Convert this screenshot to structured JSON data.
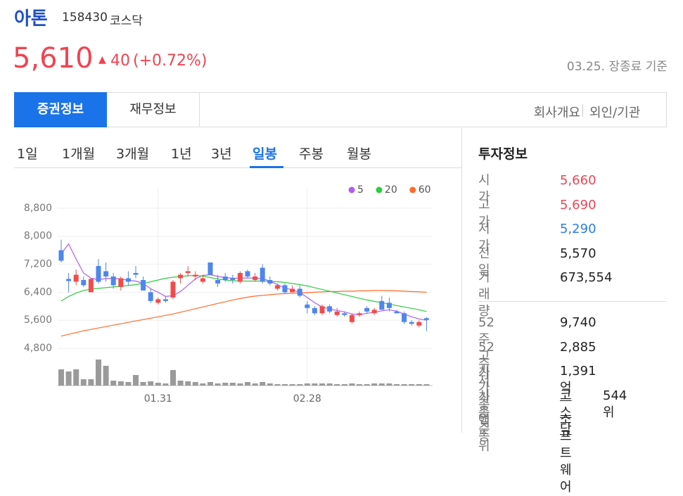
{
  "header": {
    "name": "아톤",
    "code": "158430",
    "market": "코스닥",
    "price": "5,610",
    "change": "40",
    "change_rate": "(+0.72%)",
    "as_of": "03.25. 장종료 기준"
  },
  "tabs": {
    "items": [
      "증권정보",
      "재무정보"
    ],
    "active": 0,
    "links": [
      "회사개요",
      "외인/기관"
    ]
  },
  "periods": {
    "items": [
      "1일",
      "1개월",
      "3개월",
      "1년",
      "3년",
      "일봉",
      "주봉",
      "월봉"
    ],
    "active": 5
  },
  "info": {
    "title": "투자정보",
    "rows": [
      {
        "label": "시가",
        "value": "5,660",
        "color": "#f04452"
      },
      {
        "label": "고가",
        "value": "5,690",
        "color": "#f04452"
      },
      {
        "label": "저가",
        "value": "5,290",
        "color": "#2b7de9"
      },
      {
        "label": "전일",
        "value": "5,570"
      },
      {
        "label": "거래량",
        "value": "673,554"
      }
    ],
    "rows2": [
      {
        "label": "52주 고가",
        "value": "9,740"
      },
      {
        "label": "52주 저가",
        "value": "2,885"
      },
      {
        "label": "시가총액",
        "value": "1,391억"
      },
      {
        "label": "시총순위",
        "link": "코스닥",
        "value": "544위"
      },
      {
        "label": "업종",
        "link": "소프트웨어"
      }
    ]
  },
  "chart_data": {
    "type": "candlestick",
    "up_color": "#f04c4c",
    "down_color": "#4e86ec",
    "volume_color": "#9a9a9a",
    "ylim": [
      4400,
      9300
    ],
    "yticks": [
      {
        "value": 4800,
        "label": "4,800"
      },
      {
        "value": 5600,
        "label": "5,600"
      },
      {
        "value": 6400,
        "label": "6,400"
      },
      {
        "value": 7200,
        "label": "7,200"
      },
      {
        "value": 8000,
        "label": "8,000"
      },
      {
        "value": 8800,
        "label": "8,800"
      }
    ],
    "grid": true,
    "categories": [
      null,
      null,
      null,
      null,
      null,
      null,
      null,
      null,
      null,
      null,
      null,
      null,
      null,
      "01.31",
      null,
      null,
      null,
      null,
      null,
      null,
      null,
      null,
      null,
      null,
      null,
      null,
      null,
      null,
      null,
      null,
      null,
      null,
      null,
      "02.28",
      null,
      null,
      null,
      null,
      null,
      null,
      null,
      null,
      null,
      null,
      null,
      null,
      null,
      null,
      null,
      null
    ],
    "candles": [
      {
        "open": 7600,
        "high": 7900,
        "low": 7250,
        "close": 7300
      },
      {
        "open": 6780,
        "high": 6950,
        "low": 6400,
        "close": 6720
      },
      {
        "open": 6700,
        "high": 7050,
        "low": 6600,
        "close": 6900
      },
      {
        "open": 6750,
        "high": 6850,
        "low": 6550,
        "close": 6600
      },
      {
        "open": 6400,
        "high": 6800,
        "low": 6400,
        "close": 6780
      },
      {
        "open": 7150,
        "high": 7350,
        "low": 6650,
        "close": 6700
      },
      {
        "open": 7000,
        "high": 7250,
        "low": 6700,
        "close": 6850
      },
      {
        "open": 6850,
        "high": 6950,
        "low": 6500,
        "close": 6600
      },
      {
        "open": 6550,
        "high": 6850,
        "low": 6450,
        "close": 6800
      },
      {
        "open": 6800,
        "high": 7000,
        "low": 6600,
        "close": 6700
      },
      {
        "open": 6950,
        "high": 7150,
        "low": 6800,
        "close": 6900
      },
      {
        "open": 6750,
        "high": 6850,
        "low": 6450,
        "close": 6450
      },
      {
        "open": 6400,
        "high": 6500,
        "low": 6100,
        "close": 6150
      },
      {
        "open": 6100,
        "high": 6250,
        "low": 6050,
        "close": 6200
      },
      {
        "open": 6200,
        "high": 6300,
        "low": 6100,
        "close": 6150
      },
      {
        "open": 6250,
        "high": 6750,
        "low": 6200,
        "close": 6700
      },
      {
        "open": 6800,
        "high": 6950,
        "low": 6650,
        "close": 6900
      },
      {
        "open": 6950,
        "high": 7150,
        "low": 6850,
        "close": 7000
      },
      {
        "open": 6850,
        "high": 7000,
        "low": 6750,
        "close": 6900
      },
      {
        "open": 6700,
        "high": 6900,
        "low": 6650,
        "close": 6800
      },
      {
        "open": 7250,
        "high": 7250,
        "low": 6900,
        "close": 6900
      },
      {
        "open": 6750,
        "high": 6900,
        "low": 6550,
        "close": 6650
      },
      {
        "open": 6850,
        "high": 6950,
        "low": 6700,
        "close": 6750
      },
      {
        "open": 6800,
        "high": 6900,
        "low": 6650,
        "close": 6750
      },
      {
        "open": 6700,
        "high": 7000,
        "low": 6650,
        "close": 6950
      },
      {
        "open": 7000,
        "high": 7050,
        "low": 6800,
        "close": 6850
      },
      {
        "open": 6750,
        "high": 6950,
        "low": 6700,
        "close": 6850
      },
      {
        "open": 7100,
        "high": 7200,
        "low": 6650,
        "close": 6700
      },
      {
        "open": 6750,
        "high": 6850,
        "low": 6600,
        "close": 6650
      },
      {
        "open": 6500,
        "high": 6650,
        "low": 6450,
        "close": 6600
      },
      {
        "open": 6600,
        "high": 6650,
        "low": 6350,
        "close": 6400
      },
      {
        "open": 6400,
        "high": 6600,
        "low": 6400,
        "close": 6500
      },
      {
        "open": 6500,
        "high": 6600,
        "low": 6250,
        "close": 6300
      },
      {
        "open": 6050,
        "high": 6150,
        "low": 5800,
        "close": 5950
      },
      {
        "open": 5950,
        "high": 6000,
        "low": 5750,
        "close": 5800
      },
      {
        "open": 5800,
        "high": 6050,
        "low": 5750,
        "close": 6000
      },
      {
        "open": 6000,
        "high": 6050,
        "low": 5800,
        "close": 5850
      },
      {
        "open": 5750,
        "high": 5950,
        "low": 5700,
        "close": 5850
      },
      {
        "open": 5800,
        "high": 5850,
        "low": 5700,
        "close": 5750
      },
      {
        "open": 5550,
        "high": 5800,
        "low": 5500,
        "close": 5750
      },
      {
        "open": 5750,
        "high": 5850,
        "low": 5700,
        "close": 5800
      },
      {
        "open": 5950,
        "high": 6000,
        "low": 5800,
        "close": 5850
      },
      {
        "open": 5800,
        "high": 5950,
        "low": 5750,
        "close": 5900
      },
      {
        "open": 6150,
        "high": 6300,
        "low": 5900,
        "close": 5900
      },
      {
        "open": 6100,
        "high": 6250,
        "low": 5850,
        "close": 5950
      },
      {
        "open": 5850,
        "high": 5900,
        "low": 5800,
        "close": 5800
      },
      {
        "open": 5800,
        "high": 5850,
        "low": 5500,
        "close": 5550
      },
      {
        "open": 5550,
        "high": 5600,
        "low": 5450,
        "close": 5500
      },
      {
        "open": 5450,
        "high": 5600,
        "low": 5400,
        "close": 5550
      },
      {
        "open": 5660,
        "high": 5690,
        "low": 5290,
        "close": 5610
      }
    ],
    "volume": [
      8050000,
      7000000,
      8050000,
      3150000,
      3150000,
      12950000,
      9800000,
      2450000,
      2100000,
      1750000,
      5250000,
      1750000,
      2100000,
      1400000,
      1050000,
      7700000,
      2450000,
      2100000,
      1750000,
      1050000,
      1750000,
      1050000,
      1400000,
      1400000,
      1050000,
      1750000,
      1050000,
      1750000,
      1050000,
      700000,
      700000,
      700000,
      700000,
      1050000,
      1050000,
      1050000,
      1050000,
      700000,
      700000,
      1050000,
      700000,
      700000,
      1050000,
      1050000,
      1050000,
      700000,
      700000,
      700000,
      700000,
      673554
    ],
    "series": [
      {
        "name": "5",
        "color": "#b15cf0",
        "values": [
          7500,
          7780,
          7350,
          6950,
          6800,
          6760,
          6790,
          6800,
          6780,
          6740,
          6720,
          6650,
          6500,
          6400,
          6280,
          6300,
          6420,
          6600,
          6780,
          6880,
          6900,
          6850,
          6820,
          6800,
          6800,
          6810,
          6800,
          6790,
          6720,
          6620,
          6520,
          6470,
          6400,
          6250,
          6100,
          5980,
          5920,
          5880,
          5840,
          5780,
          5760,
          5800,
          5830,
          5870,
          5900,
          5860,
          5780,
          5700,
          5640,
          5600
        ]
      },
      {
        "name": "20",
        "color": "#2ecc40",
        "values": [
          6150,
          6280,
          6380,
          6450,
          6490,
          6510,
          6530,
          6550,
          6570,
          6590,
          6620,
          6650,
          6700,
          6750,
          6800,
          6830,
          6850,
          6870,
          6880,
          6860,
          6820,
          6780,
          6750,
          6730,
          6720,
          6720,
          6720,
          6720,
          6710,
          6700,
          6680,
          6650,
          6620,
          6580,
          6530,
          6480,
          6430,
          6380,
          6330,
          6280,
          6230,
          6180,
          6140,
          6100,
          6060,
          6020,
          5980,
          5940,
          5900,
          5850
        ]
      },
      {
        "name": "60",
        "color": "#ff6b2b",
        "values": [
          5150,
          5200,
          5250,
          5300,
          5340,
          5380,
          5420,
          5460,
          5500,
          5540,
          5580,
          5620,
          5660,
          5700,
          5740,
          5780,
          5830,
          5880,
          5930,
          5980,
          6030,
          6080,
          6130,
          6180,
          6220,
          6260,
          6290,
          6310,
          6330,
          6350,
          6360,
          6370,
          6380,
          6390,
          6400,
          6410,
          6420,
          6420,
          6430,
          6430,
          6440,
          6440,
          6450,
          6450,
          6450,
          6440,
          6430,
          6420,
          6410,
          6400
        ]
      }
    ]
  }
}
